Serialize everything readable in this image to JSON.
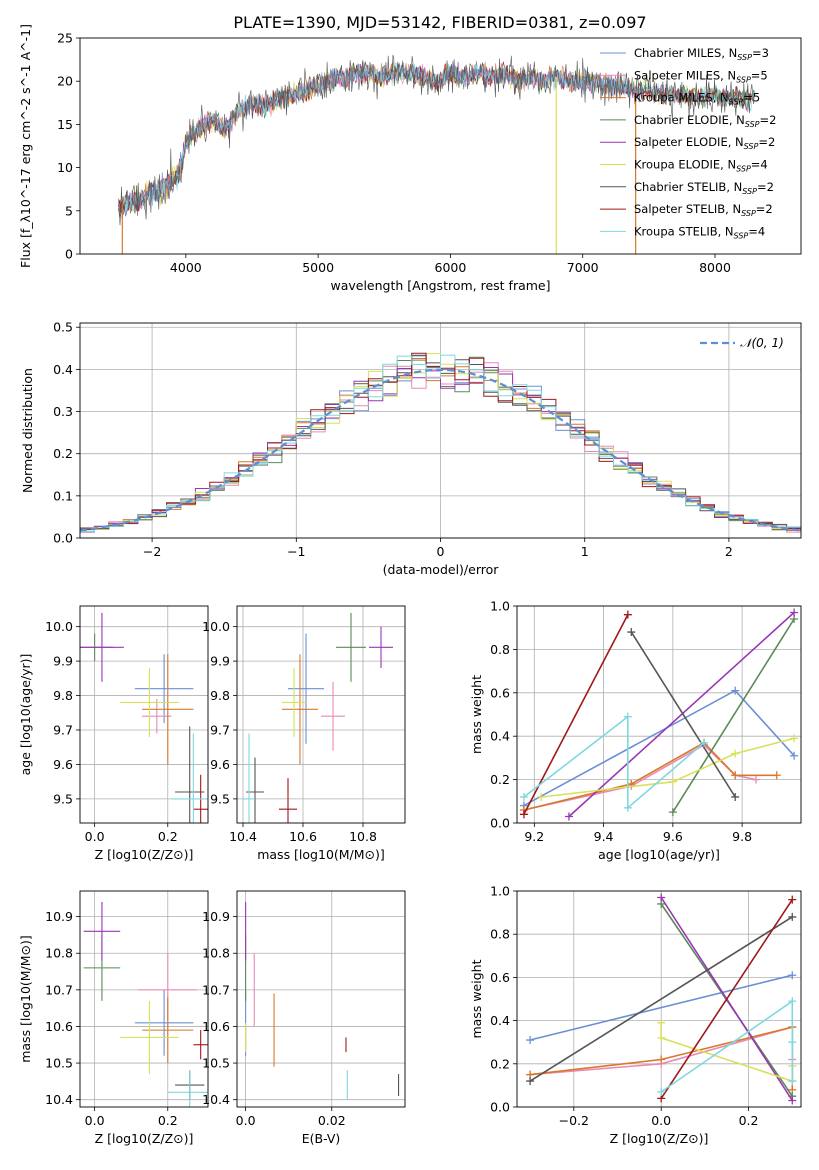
{
  "colors": {
    "chabrier_miles": "#6b8fd6",
    "salpeter_miles": "#e98ab5",
    "kroupa_miles": "#d9782a",
    "chabrier_elodie": "#5a8a5a",
    "salpeter_elodie": "#9b36b3",
    "kroupa_elodie": "#d9e05a",
    "chabrier_stelib": "#555555",
    "salpeter_stelib": "#a01818",
    "kroupa_stelib": "#7fd8e0",
    "gauss": "#5b8fd6"
  },
  "chart_data": [
    {
      "type": "line",
      "title": "PLATE=1390, MJD=53142, FIBERID=0381, z=0.097",
      "xlabel": "wavelength [Angstrom, rest frame]",
      "ylabel": "Flux [f_λ10^-17 erg cm^-2 s^-1 A^-1]",
      "xlim": [
        3200,
        8650
      ],
      "ylim": [
        0,
        25
      ],
      "xticks": [
        4000,
        5000,
        6000,
        7000,
        8000
      ],
      "yticks": [
        0,
        5,
        10,
        15,
        20,
        25
      ],
      "grid": false,
      "legend_position": "top-right",
      "legend": [
        {
          "name": "Chabrier MILES",
          "nssp": "3",
          "color_key": "chabrier_miles"
        },
        {
          "name": "Salpeter MILES",
          "nssp": "5",
          "color_key": "salpeter_miles"
        },
        {
          "name": "Kroupa MILES",
          "nssp": "5",
          "color_key": "kroupa_miles"
        },
        {
          "name": "Chabrier ELODIE",
          "nssp": "2",
          "color_key": "chabrier_elodie"
        },
        {
          "name": "Salpeter ELODIE",
          "nssp": "2",
          "color_key": "salpeter_elodie"
        },
        {
          "name": "Kroupa ELODIE",
          "nssp": "4",
          "color_key": "kroupa_elodie"
        },
        {
          "name": "Chabrier STELIB",
          "nssp": "2",
          "color_key": "chabrier_stelib"
        },
        {
          "name": "Salpeter STELIB",
          "nssp": "2",
          "color_key": "salpeter_stelib"
        },
        {
          "name": "Kroupa STELIB",
          "nssp": "4",
          "color_key": "kroupa_stelib"
        }
      ],
      "spectrum_envelope": {
        "x": [
          3500,
          3600,
          3700,
          3800,
          3900,
          3950,
          4000,
          4100,
          4200,
          4300,
          4400,
          4500,
          4600,
          4700,
          4800,
          4900,
          5000,
          5100,
          5200,
          5300,
          5400,
          5500,
          5600,
          5700,
          5800,
          5900,
          6000,
          6100,
          6200,
          6300,
          6400,
          6500,
          6600,
          6700,
          6800,
          6900,
          7000,
          7100,
          7200,
          7300,
          7400,
          7500,
          7600,
          7700,
          7800,
          7900,
          8000,
          8100,
          8200,
          8300
        ],
        "y": [
          5.5,
          6.0,
          6.5,
          7.5,
          8.5,
          9.5,
          13.0,
          14.5,
          15.5,
          14.5,
          16.5,
          17.5,
          17.0,
          18.0,
          18.5,
          19.0,
          19.5,
          20.0,
          20.5,
          21.0,
          21.0,
          20.5,
          21.0,
          21.0,
          20.5,
          20.0,
          21.0,
          20.5,
          21.0,
          20.5,
          21.0,
          20.0,
          20.5,
          20.0,
          20.5,
          20.0,
          20.0,
          19.8,
          19.5,
          19.5,
          19.0,
          19.0,
          18.5,
          18.5,
          18.5,
          18.0,
          18.5,
          18.0,
          18.0,
          18.0
        ]
      },
      "spikes": [
        {
          "x": 6800,
          "y_low": 0,
          "color_key": "kroupa_elodie"
        },
        {
          "x": 7400,
          "y_low": 0,
          "color_key": "kroupa_miles"
        },
        {
          "x": 3520,
          "y_low": 0,
          "color_key": "kroupa_miles"
        }
      ]
    },
    {
      "type": "step",
      "xlabel": "(data-model)/error",
      "ylabel": "Normed distribution",
      "xlim": [
        -2.5,
        2.5
      ],
      "ylim": [
        0,
        0.51
      ],
      "xticks": [
        -2,
        -1,
        0,
        1,
        2
      ],
      "yticks": [
        0.0,
        0.1,
        0.2,
        0.3,
        0.4,
        0.5
      ],
      "grid": true,
      "legend_position": "top-right",
      "legend_label": "𝒩(0, 1)",
      "bin_width": 0.1,
      "bin_start": -2.5
    },
    {
      "type": "errorbar",
      "xlabel": "Z [log10(Z/Z⊙)]",
      "ylabel": "age  [log10(age/yr)]",
      "xlim": [
        -0.04,
        0.31
      ],
      "ylim": [
        9.43,
        10.06
      ],
      "xticks": [
        0.0,
        0.2
      ],
      "yticks": [
        9.5,
        9.6,
        9.7,
        9.8,
        9.9,
        10.0
      ],
      "grid": true,
      "points": [
        {
          "color_key": "chabrier_miles",
          "x": 0.19,
          "xerr": 0.08,
          "y": 9.82,
          "yerr": 0.1
        },
        {
          "color_key": "salpeter_miles",
          "x": 0.17,
          "xerr": 0.04,
          "y": 9.74,
          "yerr": 0.05
        },
        {
          "color_key": "kroupa_miles",
          "x": 0.2,
          "xerr": 0.07,
          "y": 9.76,
          "yerr": 0.16
        },
        {
          "color_key": "chabrier_elodie",
          "x": 0.0,
          "xerr": 0.05,
          "y": 9.94,
          "yerr": 0.04
        },
        {
          "color_key": "salpeter_elodie",
          "x": 0.02,
          "xerr": 0.06,
          "y": 9.94,
          "yerr": 0.1
        },
        {
          "color_key": "kroupa_elodie",
          "x": 0.15,
          "xerr": 0.08,
          "y": 9.78,
          "yerr": 0.1
        },
        {
          "color_key": "chabrier_stelib",
          "x": 0.26,
          "xerr": 0.04,
          "y": 9.52,
          "yerr": 0.19
        },
        {
          "color_key": "salpeter_stelib",
          "x": 0.29,
          "xerr": 0.02,
          "y": 9.47,
          "yerr": 0.1
        },
        {
          "color_key": "kroupa_stelib",
          "x": 0.27,
          "xerr": 0.06,
          "y": 9.5,
          "yerr": 0.19
        }
      ]
    },
    {
      "type": "errorbar",
      "xlabel": "mass [log10(M/M⊙)]",
      "ylabel": "",
      "xlim": [
        10.38,
        10.94
      ],
      "ylim": [
        9.43,
        10.06
      ],
      "xticks": [
        10.4,
        10.6,
        10.8
      ],
      "yticks": [
        9.5,
        9.6,
        9.7,
        9.8,
        9.9,
        10.0
      ],
      "grid": true,
      "points": [
        {
          "color_key": "chabrier_miles",
          "x": 10.61,
          "xerr": 0.06,
          "y": 9.82,
          "yerr": 0.16
        },
        {
          "color_key": "salpeter_miles",
          "x": 10.7,
          "xerr": 0.04,
          "y": 9.74,
          "yerr": 0.1
        },
        {
          "color_key": "kroupa_miles",
          "x": 10.59,
          "xerr": 0.06,
          "y": 9.76,
          "yerr": 0.16
        },
        {
          "color_key": "chabrier_elodie",
          "x": 10.76,
          "xerr": 0.05,
          "y": 9.94,
          "yerr": 0.1
        },
        {
          "color_key": "salpeter_elodie",
          "x": 10.86,
          "xerr": 0.04,
          "y": 9.94,
          "yerr": 0.06
        },
        {
          "color_key": "kroupa_elodie",
          "x": 10.57,
          "xerr": 0.04,
          "y": 9.78,
          "yerr": 0.1
        },
        {
          "color_key": "chabrier_stelib",
          "x": 10.44,
          "xerr": 0.03,
          "y": 9.52,
          "yerr": 0.1
        },
        {
          "color_key": "salpeter_stelib",
          "x": 10.55,
          "xerr": 0.03,
          "y": 9.47,
          "yerr": 0.09
        },
        {
          "color_key": "kroupa_stelib",
          "x": 10.42,
          "xerr": 0.02,
          "y": 9.5,
          "yerr": 0.19
        }
      ]
    },
    {
      "type": "line",
      "xlabel": "age  [log10(age/yr)]",
      "ylabel": "mass weight",
      "xlim": [
        9.15,
        9.97
      ],
      "ylim": [
        0,
        1.0
      ],
      "xticks": [
        9.2,
        9.4,
        9.6,
        9.8
      ],
      "yticks": [
        0.0,
        0.2,
        0.4,
        0.6,
        0.8,
        1.0
      ],
      "grid": true,
      "series": [
        {
          "color_key": "chabrier_miles",
          "x": [
            9.17,
            9.78,
            9.95
          ],
          "y": [
            0.08,
            0.61,
            0.31
          ]
        },
        {
          "color_key": "salpeter_miles",
          "x": [
            9.17,
            9.48,
            9.69,
            9.78,
            9.84
          ],
          "y": [
            0.06,
            0.17,
            0.36,
            0.22,
            0.2
          ]
        },
        {
          "color_key": "kroupa_miles",
          "x": [
            9.17,
            9.48,
            9.69,
            9.78,
            9.9
          ],
          "y": [
            0.06,
            0.18,
            0.37,
            0.22,
            0.22
          ]
        },
        {
          "color_key": "chabrier_elodie",
          "x": [
            9.6,
            9.95
          ],
          "y": [
            0.05,
            0.94
          ]
        },
        {
          "color_key": "salpeter_elodie",
          "x": [
            9.3,
            9.95
          ],
          "y": [
            0.03,
            0.97
          ]
        },
        {
          "color_key": "kroupa_elodie",
          "x": [
            9.22,
            9.6,
            9.78,
            9.95
          ],
          "y": [
            0.12,
            0.19,
            0.32,
            0.39
          ]
        },
        {
          "color_key": "chabrier_stelib",
          "x": [
            9.48,
            9.78
          ],
          "y": [
            0.88,
            0.12
          ]
        },
        {
          "color_key": "salpeter_stelib",
          "x": [
            9.17,
            9.47
          ],
          "y": [
            0.04,
            0.96
          ]
        },
        {
          "color_key": "kroupa_stelib",
          "x": [
            9.17,
            9.47,
            9.47,
            9.69
          ],
          "y": [
            0.12,
            0.49,
            0.07,
            0.37
          ]
        }
      ]
    },
    {
      "type": "errorbar",
      "xlabel": "Z [log10(Z/Z⊙)]",
      "ylabel": "mass [log10(M/M⊙)]",
      "xlim": [
        -0.04,
        0.31
      ],
      "ylim": [
        10.38,
        10.97
      ],
      "xticks": [
        0.0,
        0.2
      ],
      "yticks": [
        10.4,
        10.5,
        10.6,
        10.7,
        10.8,
        10.9
      ],
      "grid": true,
      "points": [
        {
          "color_key": "chabrier_miles",
          "x": 0.19,
          "xerr": 0.08,
          "y": 10.61,
          "yerr": 0.09
        },
        {
          "color_key": "salpeter_miles",
          "x": 0.2,
          "xerr": 0.08,
          "y": 10.7,
          "yerr": 0.1
        },
        {
          "color_key": "kroupa_miles",
          "x": 0.2,
          "xerr": 0.07,
          "y": 10.59,
          "yerr": 0.09
        },
        {
          "color_key": "chabrier_elodie",
          "x": 0.02,
          "xerr": 0.05,
          "y": 10.76,
          "yerr": 0.09
        },
        {
          "color_key": "salpeter_elodie",
          "x": 0.02,
          "xerr": 0.05,
          "y": 10.86,
          "yerr": 0.08
        },
        {
          "color_key": "kroupa_elodie",
          "x": 0.15,
          "xerr": 0.08,
          "y": 10.57,
          "yerr": 0.1
        },
        {
          "color_key": "chabrier_stelib",
          "x": 0.26,
          "xerr": 0.04,
          "y": 10.44,
          "yerr": 0.04
        },
        {
          "color_key": "salpeter_stelib",
          "x": 0.29,
          "xerr": 0.02,
          "y": 10.55,
          "yerr": 0.04
        },
        {
          "color_key": "kroupa_stelib",
          "x": 0.26,
          "xerr": 0.06,
          "y": 10.42,
          "yerr": 0.06
        }
      ]
    },
    {
      "type": "errorbar",
      "xlabel": "E(B-V)",
      "ylabel": "",
      "xlim": [
        -0.002,
        0.037
      ],
      "ylim": [
        10.38,
        10.97
      ],
      "xticks": [
        0.0,
        0.02
      ],
      "yticks": [
        10.4,
        10.5,
        10.6,
        10.7,
        10.8,
        10.9
      ],
      "grid": true,
      "points": [
        {
          "color_key": "chabrier_miles",
          "x": 0.0,
          "xerr": 0.0,
          "y": 10.61,
          "yerr": 0.09
        },
        {
          "color_key": "salpeter_miles",
          "x": 0.002,
          "xerr": 0.0,
          "y": 10.7,
          "yerr": 0.1
        },
        {
          "color_key": "kroupa_miles",
          "x": 0.0066,
          "xerr": 0.0,
          "y": 10.59,
          "yerr": 0.1
        },
        {
          "color_key": "chabrier_elodie",
          "x": 0.0,
          "xerr": 0.0,
          "y": 10.76,
          "yerr": 0.09
        },
        {
          "color_key": "salpeter_elodie",
          "x": 0.0,
          "xerr": 0.0,
          "y": 10.86,
          "yerr": 0.08
        },
        {
          "color_key": "kroupa_elodie",
          "x": 0.0,
          "xerr": 0.0,
          "y": 10.57,
          "yerr": 0.04
        },
        {
          "color_key": "chabrier_stelib",
          "x": 0.0355,
          "xerr": 0.0,
          "y": 10.44,
          "yerr": 0.03
        },
        {
          "color_key": "salpeter_stelib",
          "x": 0.0233,
          "xerr": 0.0,
          "y": 10.55,
          "yerr": 0.02
        },
        {
          "color_key": "kroupa_stelib",
          "x": 0.0236,
          "xerr": 0.0,
          "y": 10.44,
          "yerr": 0.04
        }
      ]
    },
    {
      "type": "line",
      "xlabel": "Z [log10(Z/Z⊙)]",
      "ylabel": "mass weight",
      "xlim": [
        -0.33,
        0.32
      ],
      "ylim": [
        0,
        1.0
      ],
      "xticks": [
        -0.2,
        0.0,
        0.2
      ],
      "yticks": [
        0.0,
        0.2,
        0.4,
        0.6,
        0.8,
        1.0
      ],
      "grid": true,
      "series": [
        {
          "color_key": "chabrier_miles",
          "x": [
            -0.3,
            0.3
          ],
          "y": [
            0.31,
            0.61
          ]
        },
        {
          "color_key": "salpeter_miles",
          "x": [
            -0.3,
            0.0,
            0.3,
            0.3
          ],
          "y": [
            0.15,
            0.2,
            0.37,
            0.22
          ]
        },
        {
          "color_key": "kroupa_miles",
          "x": [
            -0.3,
            0.0,
            0.3,
            0.3
          ],
          "y": [
            0.15,
            0.22,
            0.37,
            0.08
          ]
        },
        {
          "color_key": "chabrier_elodie",
          "x": [
            0.0,
            0.3
          ],
          "y": [
            0.94,
            0.05
          ]
        },
        {
          "color_key": "salpeter_elodie",
          "x": [
            0.0,
            0.3
          ],
          "y": [
            0.97,
            0.03
          ]
        },
        {
          "color_key": "kroupa_elodie",
          "x": [
            0.0,
            0.0,
            0.3,
            0.3
          ],
          "y": [
            0.39,
            0.32,
            0.12,
            0.19
          ]
        },
        {
          "color_key": "chabrier_stelib",
          "x": [
            -0.3,
            0.3
          ],
          "y": [
            0.12,
            0.88
          ]
        },
        {
          "color_key": "salpeter_stelib",
          "x": [
            0.0,
            0.3
          ],
          "y": [
            0.04,
            0.96
          ]
        },
        {
          "color_key": "kroupa_stelib",
          "x": [
            0.0,
            0.3,
            0.3,
            0.3
          ],
          "y": [
            0.07,
            0.49,
            0.12,
            0.3
          ]
        }
      ]
    }
  ]
}
